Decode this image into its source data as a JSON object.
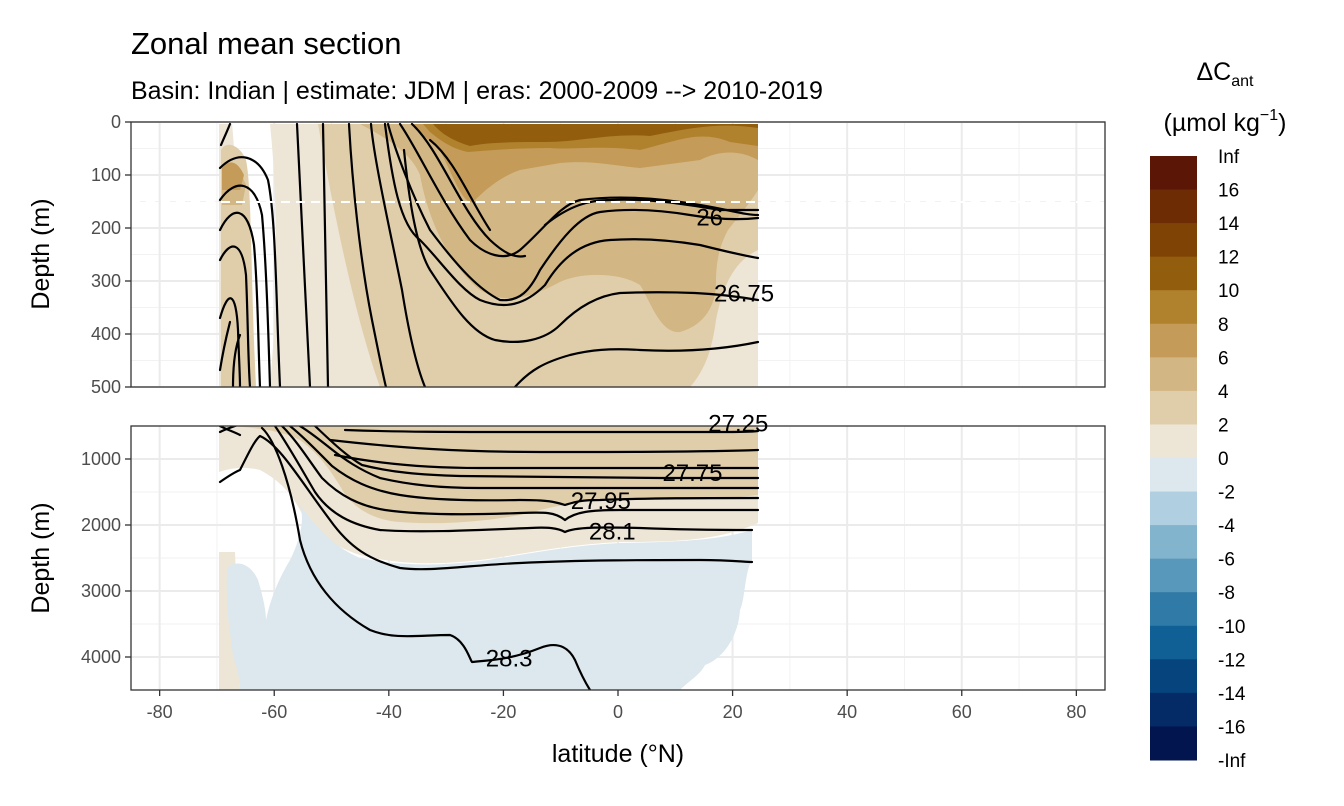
{
  "chart_data": {
    "type": "heatmap",
    "title": "Zonal mean section",
    "subtitle": "Basin: Indian | estimate: JDM  | eras: 2000-2009 --> 2010-2019",
    "xlabel": "latitude (°N)",
    "ylabel": "Depth (m)",
    "xlim": [
      -85,
      85
    ],
    "x_ticks": [
      -80,
      -60,
      -40,
      -20,
      0,
      20,
      40,
      60,
      80
    ],
    "x_tick_labels": [
      "-80",
      "-60",
      "-40",
      "-20",
      "0",
      "20",
      "40",
      "60",
      "80"
    ],
    "panels": [
      {
        "name": "upper",
        "ylim": [
          0,
          500
        ],
        "y_ticks": [
          0,
          100,
          200,
          300,
          400,
          500
        ],
        "y_tick_labels": [
          "0",
          "100",
          "200",
          "300",
          "400",
          "500"
        ],
        "reference_depth": 150
      },
      {
        "name": "lower",
        "ylim": [
          500,
          4500
        ],
        "y_ticks": [
          1000,
          2000,
          3000,
          4000
        ],
        "y_tick_labels": [
          "1000",
          "2000",
          "3000",
          "4000"
        ]
      }
    ],
    "legend": {
      "title_main": "ΔC",
      "title_sub": "ant",
      "unit_open": "(µmol kg",
      "unit_sup": "−1",
      "unit_close": ")",
      "labels": [
        "Inf",
        "16",
        "14",
        "12",
        "10",
        "8",
        "6",
        "4",
        "2",
        "0",
        "-2",
        "-4",
        "-6",
        "-8",
        "-10",
        "-12",
        "-14",
        "-16",
        "-Inf"
      ],
      "colors": [
        "#5c1606",
        "#6e2c05",
        "#7f4405",
        "#925e0d",
        "#b0822e",
        "#c49b58",
        "#d2b684",
        "#e0ceab",
        "#ede5d6",
        "#dce8ee",
        "#b0cfe0",
        "#82b4cd",
        "#5898ba",
        "#2f7aa6",
        "#105f95",
        "#05447c",
        "#042b66",
        "#03154e"
      ]
    },
    "contour_labels": [
      {
        "panel": "upper",
        "label": "26",
        "lat": 16,
        "depth": 178
      },
      {
        "panel": "upper",
        "label": "26.75",
        "lat": 22,
        "depth": 322
      },
      {
        "panel": "lower",
        "label": "27.25",
        "lat": 21,
        "depth": 450
      },
      {
        "panel": "lower",
        "label": "27.75",
        "lat": 13,
        "depth": 1200
      },
      {
        "panel": "lower",
        "label": "27.95",
        "lat": -3,
        "depth": 1620
      },
      {
        "panel": "lower",
        "label": "28.1",
        "lat": -1,
        "depth": 2080
      },
      {
        "panel": "lower",
        "label": "28.3",
        "lat": -19,
        "depth": 4010
      }
    ]
  }
}
